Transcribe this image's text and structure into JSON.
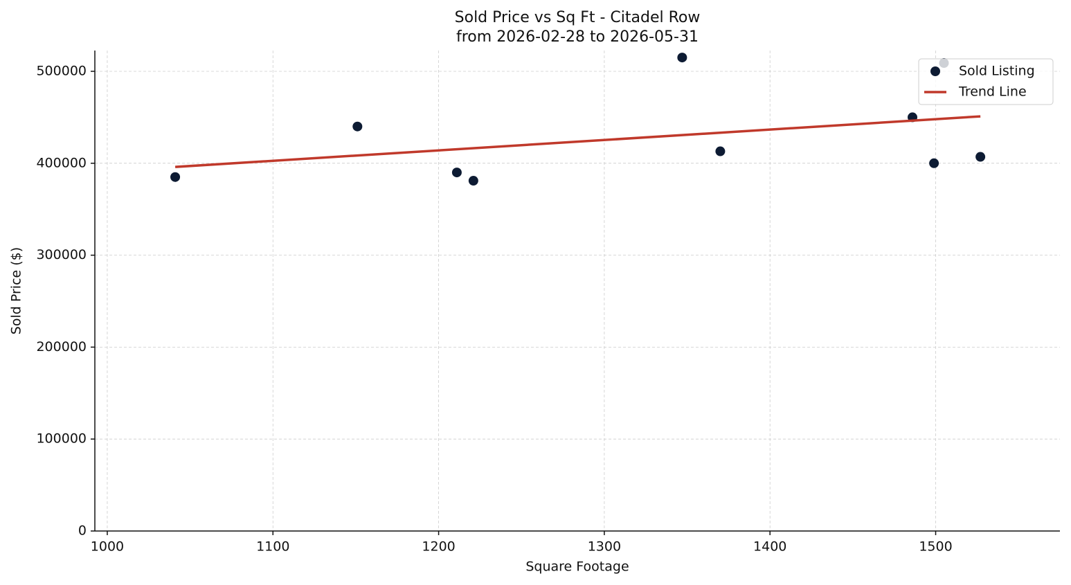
{
  "chart_data": {
    "type": "scatter",
    "title": "Sold Price vs Sq Ft - Citadel Row",
    "subtitle": "from 2026-02-28 to 2026-05-31",
    "x_label": "Square Footage",
    "y_label": "Sold Price ($)",
    "series": [
      {
        "name": "Sold Listing",
        "type": "scatter",
        "color": "#0d1b33",
        "x": [
          1041,
          1151,
          1211,
          1221,
          1347,
          1370,
          1486,
          1499,
          1505,
          1527
        ],
        "values": [
          385000,
          440000,
          390000,
          381000,
          515000,
          413000,
          450000,
          400000,
          509000,
          407000
        ]
      },
      {
        "name": "Trend Line",
        "type": "line",
        "color": "#c0392b",
        "x": [
          1041,
          1527
        ],
        "values": [
          396000,
          451000
        ]
      }
    ],
    "xlim": [
      992.5,
      1575
    ],
    "xticks": [
      1000,
      1100,
      1200,
      1300,
      1400,
      1500
    ],
    "ylim": [
      0,
      522600
    ],
    "yticks": [
      0,
      100000,
      200000,
      300000,
      400000,
      500000
    ],
    "grid": true,
    "legend": "upper right"
  }
}
